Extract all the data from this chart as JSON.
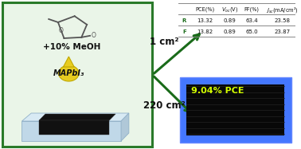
{
  "left_box_color": "#eaf5e8",
  "left_box_edge": "#2a7a2a",
  "solvent_label": "+10% MeOH",
  "perovskite_label": "MAPbI₃",
  "arrow_color": "#1a6b1a",
  "arrow1_label": "1 cm²",
  "arrow2_label": "220 cm²",
  "table_row_R": [
    "R",
    "13.32",
    "0.89",
    "63.4",
    "23.58"
  ],
  "table_row_F": [
    "F",
    "13.82",
    "0.89",
    "65.0",
    "23.87"
  ],
  "module_label": "9.04% PCE",
  "module_label_color": "#d4ff00",
  "module_bg": "#080808",
  "module_border_outer": "#4477ff",
  "module_border_inner": "#2244cc",
  "fig_bg": "#ffffff",
  "mol_color": "#555555",
  "cell_base_color": "#c0d8e8",
  "cell_base_edge": "#90b0c8",
  "cell_active_color": "#111111",
  "drop_color": "#e8cc20",
  "drop_edge": "#c0a800",
  "arrow_lw": 2.2
}
